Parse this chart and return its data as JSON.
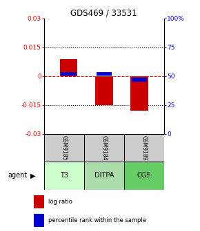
{
  "title": "GDS469 / 33531",
  "samples": [
    "GSM9185",
    "GSM9184",
    "GSM9189"
  ],
  "agents": [
    "T3",
    "DITPA",
    "CGS"
  ],
  "log_ratios": [
    0.009,
    -0.015,
    -0.018
  ],
  "percentile_ranks": [
    52,
    52,
    47
  ],
  "ylim_left": [
    -0.03,
    0.03
  ],
  "ylim_right": [
    0,
    100
  ],
  "yticks_left": [
    -0.03,
    -0.015,
    0,
    0.015,
    0.03
  ],
  "ytick_labels_left": [
    "-0.03",
    "-0.015",
    "0",
    "0.015",
    "0.03"
  ],
  "yticks_right": [
    0,
    25,
    50,
    75,
    100
  ],
  "ytick_labels_right": [
    "0",
    "25",
    "50",
    "75",
    "100%"
  ],
  "bar_color_log": "#cc0000",
  "bar_color_pct": "#0000cc",
  "agent_colors": [
    "#ccffcc",
    "#aaddaa",
    "#66cc66"
  ],
  "sample_bg_color": "#cccccc",
  "zero_line_color": "#cc0000",
  "agent_label": "agent",
  "legend_log": "log ratio",
  "legend_pct": "percentile rank within the sample"
}
